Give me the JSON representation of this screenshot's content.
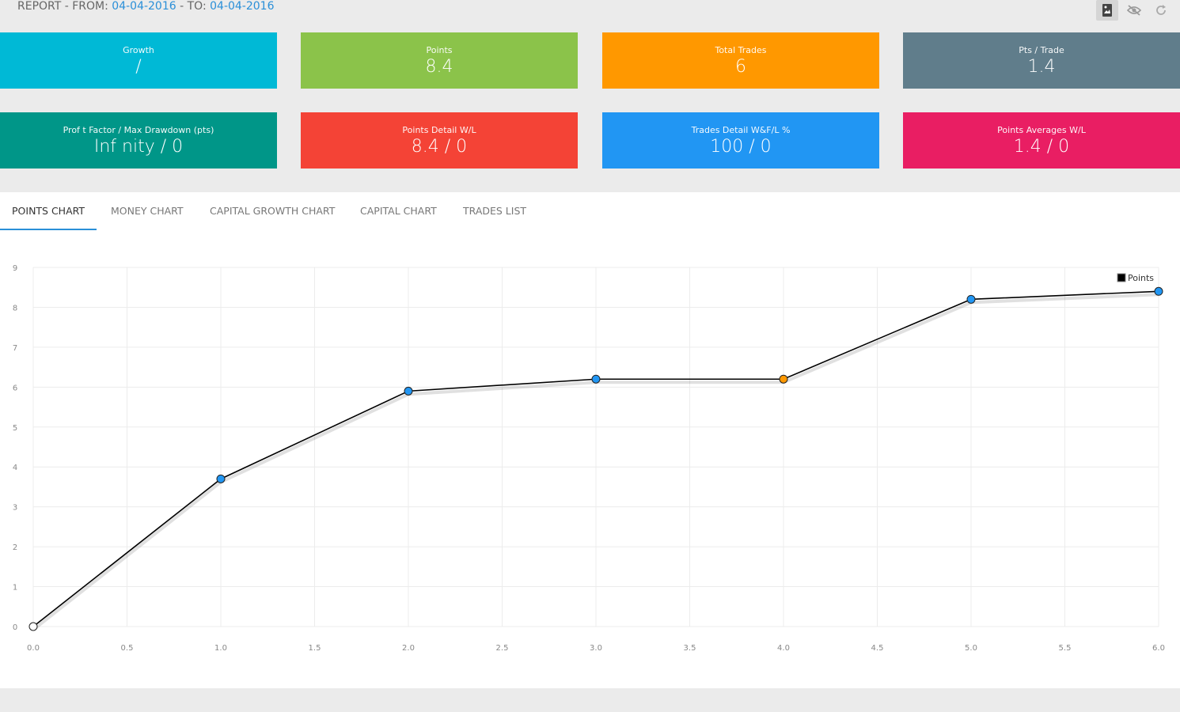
{
  "header": {
    "prefix": "REPORT - FROM: ",
    "from_date": "04-04-2016",
    "middle": " - TO: ",
    "to_date": "04-04-2016"
  },
  "toolbar": {
    "buttons": [
      {
        "icon": "image-bookmark-icon",
        "active": true
      },
      {
        "icon": "eye-off-icon",
        "active": false
      },
      {
        "icon": "refresh-icon",
        "active": false
      }
    ]
  },
  "tiles": [
    {
      "label": "Growth",
      "value": "/",
      "color": "#00b9d6"
    },
    {
      "label": "Points",
      "value": "8.4",
      "color": "#8bc34a"
    },
    {
      "label": "Total Trades",
      "value": "6",
      "color": "#ff9800"
    },
    {
      "label": "Pts / Trade",
      "value": "1.4",
      "color": "#607d8b"
    },
    {
      "label": "Prof t Factor / Max Drawdown (pts)",
      "value": "Inf nity / 0",
      "color": "#009688"
    },
    {
      "label": "Points Detail W/L",
      "value": "8.4 / 0",
      "color": "#f44336"
    },
    {
      "label": "Trades Detail W&F/L %",
      "value": "100 / 0",
      "color": "#2196f3"
    },
    {
      "label": "Points Averages W/L",
      "value": "1.4 / 0",
      "color": "#e91e63"
    }
  ],
  "tabs": [
    {
      "label": "POINTS CHART",
      "active": true
    },
    {
      "label": "MONEY CHART",
      "active": false
    },
    {
      "label": "CAPITAL GROWTH CHART",
      "active": false
    },
    {
      "label": "CAPITAL CHART",
      "active": false
    },
    {
      "label": "TRADES LIST",
      "active": false
    }
  ],
  "chart_data": {
    "type": "line",
    "x": [
      0,
      1,
      2,
      3,
      4,
      5,
      6
    ],
    "series": [
      {
        "name": "Points",
        "values": [
          0,
          3.7,
          5.9,
          6.2,
          6.2,
          8.2,
          8.4
        ],
        "point_colors": [
          "#ffffff",
          "#2196f3",
          "#2196f3",
          "#2196f3",
          "#ff9800",
          "#2196f3",
          "#2196f3"
        ]
      }
    ],
    "xlim": [
      0,
      6
    ],
    "ylim": [
      0,
      9
    ],
    "x_ticks": [
      "0.0",
      "0.5",
      "1.0",
      "1.5",
      "2.0",
      "2.5",
      "3.0",
      "3.5",
      "4.0",
      "4.5",
      "5.0",
      "5.5",
      "6.0"
    ],
    "y_ticks": [
      "0",
      "1",
      "2",
      "3",
      "4",
      "5",
      "6",
      "7",
      "8",
      "9"
    ],
    "grid": true,
    "legend": "top-right",
    "line_color": "#000000"
  }
}
